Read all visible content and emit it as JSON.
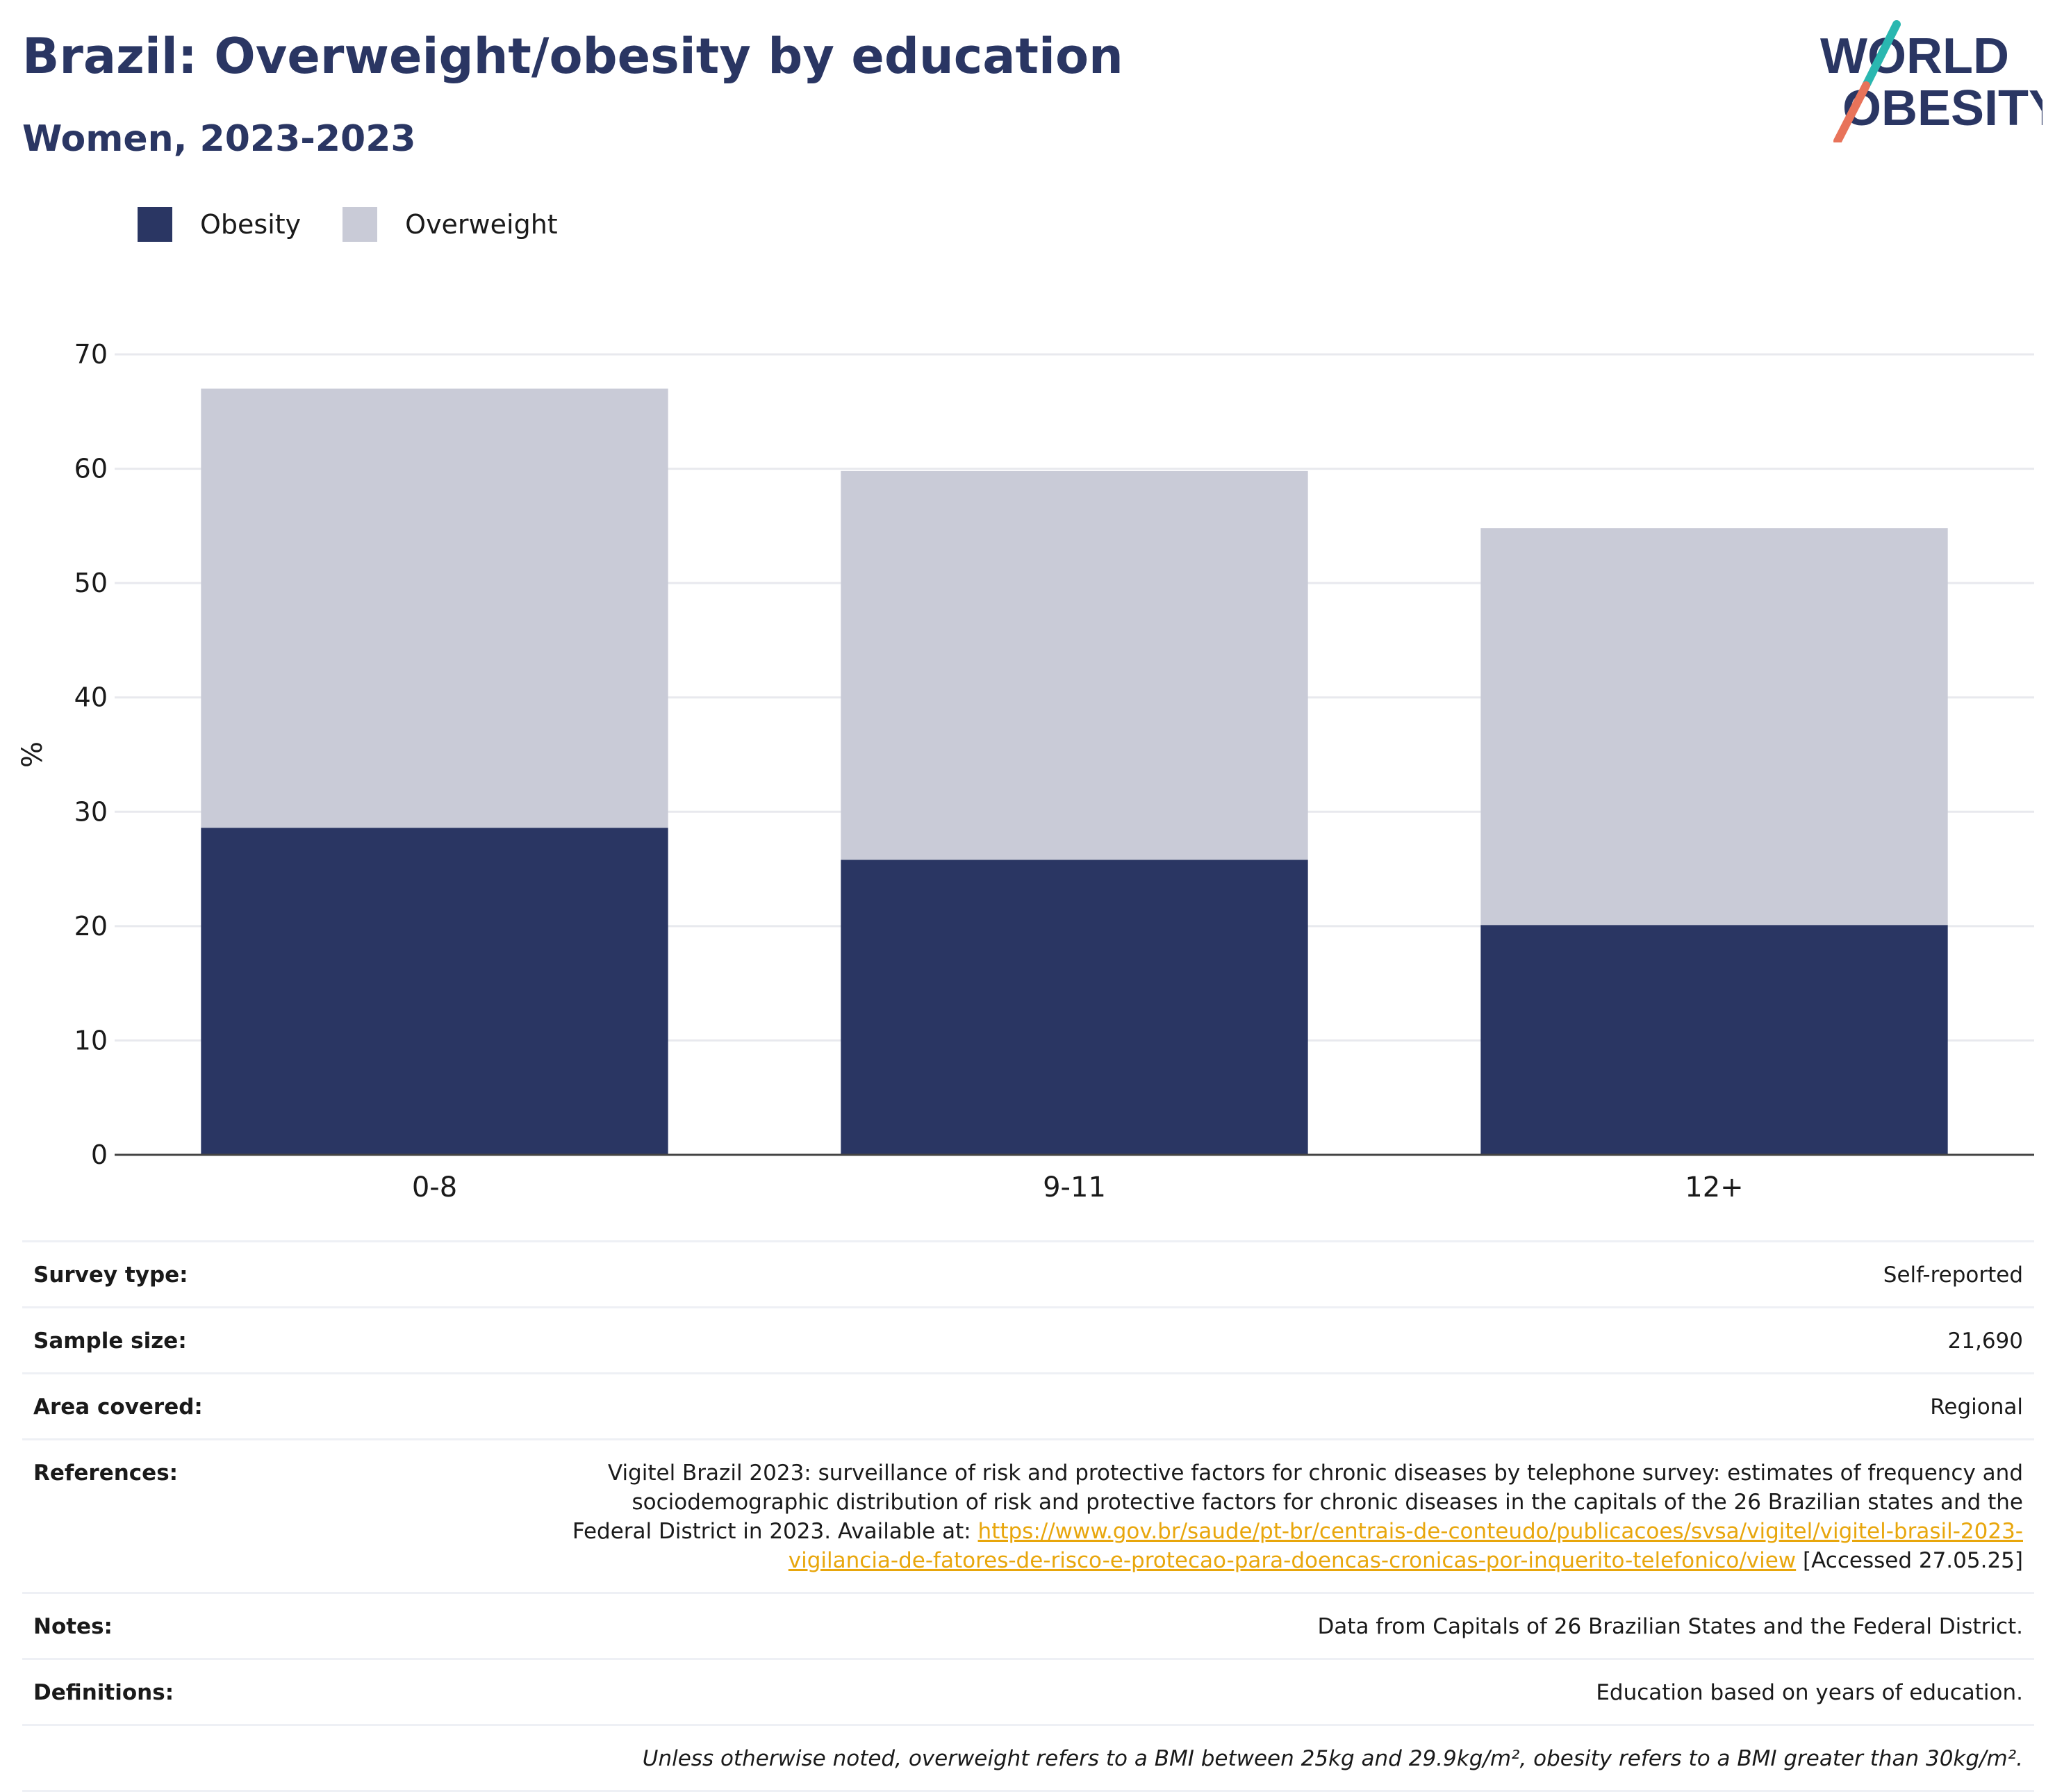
{
  "header": {
    "title": "Brazil: Overweight/obesity by education",
    "subtitle": "Women, 2023-2023"
  },
  "logo": {
    "line1": "WORLD",
    "line2": "OBESITY"
  },
  "colors": {
    "obesity": "#2a3663",
    "overweight": "#c9cbd7",
    "text_dark": "#2a3663",
    "logo_slash_teal": "#2ab7b0",
    "logo_slash_coral": "#e8735a",
    "link": "#e8a60c"
  },
  "legend": {
    "obesity_label": "Obesity",
    "overweight_label": "Overweight"
  },
  "chart_data": {
    "type": "bar",
    "stacked": true,
    "categories": [
      "0-8",
      "9-11",
      "12+"
    ],
    "series": [
      {
        "name": "Obesity",
        "values": [
          28.6,
          25.8,
          20.1
        ]
      },
      {
        "name": "Overweight",
        "values": [
          38.4,
          34.0,
          34.7
        ]
      }
    ],
    "ylabel": "%",
    "ylim": [
      0,
      70
    ],
    "yticks": [
      0,
      10,
      20,
      30,
      40,
      50,
      60,
      70
    ],
    "grid": true,
    "legend_position": "top-left"
  },
  "meta": {
    "survey_type": {
      "label": "Survey type:",
      "value": "Self-reported"
    },
    "sample_size": {
      "label": "Sample size:",
      "value": "21,690"
    },
    "area_covered": {
      "label": "Area covered:",
      "value": "Regional"
    },
    "references": {
      "label": "References:",
      "text_before": "Vigitel Brazil 2023: surveillance of risk and protective factors for chronic diseases by telephone survey: estimates of frequency and sociodemographic distribution of risk and protective factors for chronic diseases in the capitals of the 26 Brazilian states and the Federal District in 2023. Available at: ",
      "link": "https://www.gov.br/saude/pt-br/centrais-de-conteudo/publicacoes/svsa/vigitel/vigitel-brasil-2023-vigilancia-de-fatores-de-risco-e-protecao-para-doencas-cronicas-por-inquerito-telefonico/view",
      "text_after": " [Accessed 27.05.25]"
    },
    "notes": {
      "label": "Notes:",
      "value": "Data from Capitals of 26 Brazilian States and the Federal District."
    },
    "definitions": {
      "label": "Definitions:",
      "value": "Education based on years of education."
    },
    "footnote": "Unless otherwise noted, overweight refers to a BMI between 25kg and 29.9kg/m², obesity refers to a BMI greater than 30kg/m²."
  }
}
